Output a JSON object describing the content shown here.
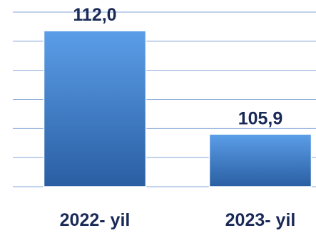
{
  "chart_data": {
    "type": "bar",
    "title": "",
    "xlabel": "",
    "ylabel": "",
    "categories": [
      "2022- yil",
      "2023- yil"
    ],
    "values": [
      112.0,
      105.9
    ],
    "value_labels": [
      "112,0",
      "105,9"
    ],
    "ylim": [
      102.8,
      113.1
    ],
    "grid": true,
    "legend": "none",
    "colors": {
      "bar_top": "#5b9ee8",
      "bar_bottom": "#2a5ea3",
      "bar_edge": "#ffffff",
      "grid": "#86a6d9",
      "text": "#1a2a57"
    }
  }
}
